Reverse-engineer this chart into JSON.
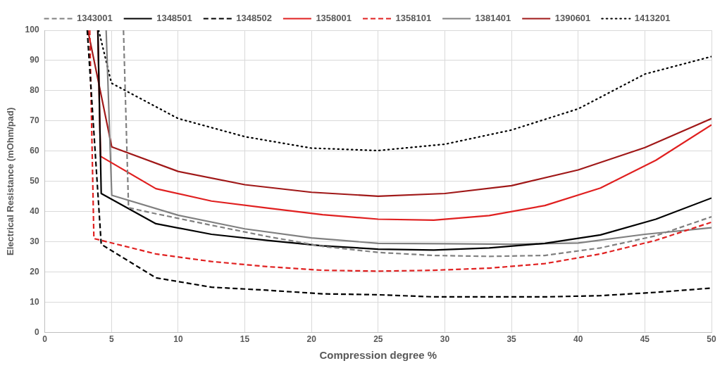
{
  "chart_data": {
    "type": "line",
    "xlabel": "Compression degree %",
    "ylabel": "Electrical Resistance (mOhm/pad)",
    "xlim": [
      0,
      50
    ],
    "ylim": [
      0,
      100
    ],
    "xticks": [
      0,
      5,
      10,
      15,
      20,
      25,
      30,
      35,
      40,
      45,
      50
    ],
    "yticks": [
      0,
      10,
      20,
      30,
      40,
      50,
      60,
      70,
      80,
      90,
      100
    ],
    "grid": true,
    "legend": "top",
    "marker": "none",
    "series": [
      {
        "name": "1343001",
        "color": "#808080",
        "line_style": "dashed",
        "x": [
          5.9,
          6.28,
          8.33,
          12.5,
          16.67,
          20.83,
          25,
          29.17,
          33.33,
          37.5,
          41.67,
          45.83,
          50
        ],
        "values": [
          100,
          41.3,
          39.3,
          35.5,
          31.8,
          28.5,
          26.5,
          25.5,
          25.2,
          25.5,
          28,
          32,
          38.3
        ]
      },
      {
        "name": "1348501",
        "color": "#000000",
        "line_style": "solid",
        "x": [
          3.98,
          4.23,
          8.33,
          12.5,
          16.67,
          20.83,
          25,
          29.17,
          33.33,
          37.5,
          41.67,
          45.83,
          50
        ],
        "values": [
          100,
          46,
          36,
          32.5,
          30.5,
          28.7,
          27.6,
          27.3,
          28,
          29.5,
          32.3,
          37.5,
          44.5
        ]
      },
      {
        "name": "1348502",
        "color": "#000000",
        "line_style": "dashed",
        "x": [
          3.18,
          4.23,
          8.33,
          12.5,
          16.67,
          20.83,
          25,
          29.17,
          33.33,
          37.5,
          41.67,
          45.83,
          50
        ],
        "values": [
          100,
          29.2,
          18.1,
          15,
          14,
          12.8,
          12.5,
          11.8,
          11.8,
          11.8,
          12.2,
          13.3,
          14.7
        ]
      },
      {
        "name": "1358001",
        "color": "#e02020",
        "line_style": "solid",
        "x": [
          3.97,
          4.18,
          8.33,
          12.5,
          16.67,
          20.83,
          25,
          29.17,
          33.33,
          37.5,
          41.67,
          45.83,
          50
        ],
        "values": [
          100,
          58.3,
          47.6,
          43.5,
          41.2,
          39,
          37.5,
          37.2,
          38.7,
          42,
          47.8,
          57,
          68.7
        ]
      },
      {
        "name": "1358101",
        "color": "#e02020",
        "line_style": "dashed",
        "x": [
          3.37,
          3.68,
          8.33,
          12.5,
          16.67,
          20.83,
          25,
          29.17,
          33.33,
          37.5,
          41.67,
          45.83,
          50
        ],
        "values": [
          100,
          31.1,
          26,
          23.5,
          21.8,
          20.6,
          20.3,
          20.6,
          21.3,
          22.8,
          26,
          30.5,
          36.5
        ]
      },
      {
        "name": "1381401",
        "color": "#808080",
        "line_style": "solid",
        "x": [
          4.6,
          5.02,
          10,
          15,
          20,
          25,
          30,
          35,
          40,
          45,
          50
        ],
        "values": [
          100,
          45.4,
          38.8,
          34.3,
          31.3,
          29.5,
          29.4,
          29.2,
          29.6,
          32.5,
          34.7
        ]
      },
      {
        "name": "1390601",
        "color": "#a01818",
        "line_style": "solid",
        "x": [
          3.23,
          5.02,
          10,
          15,
          20,
          25,
          30,
          35,
          40,
          45,
          50
        ],
        "values": [
          100,
          61.4,
          53.3,
          48.9,
          46.4,
          45.1,
          46,
          48.6,
          53.8,
          61.2,
          70.8
        ]
      },
      {
        "name": "1413201",
        "color": "#000000",
        "line_style": "dotted",
        "x": [
          4.04,
          5,
          10,
          15,
          20,
          25,
          30,
          35,
          40,
          45,
          50
        ],
        "values": [
          100,
          82.5,
          70.8,
          64.8,
          61,
          60.2,
          62.3,
          67,
          74,
          85.5,
          91.3
        ]
      }
    ]
  }
}
